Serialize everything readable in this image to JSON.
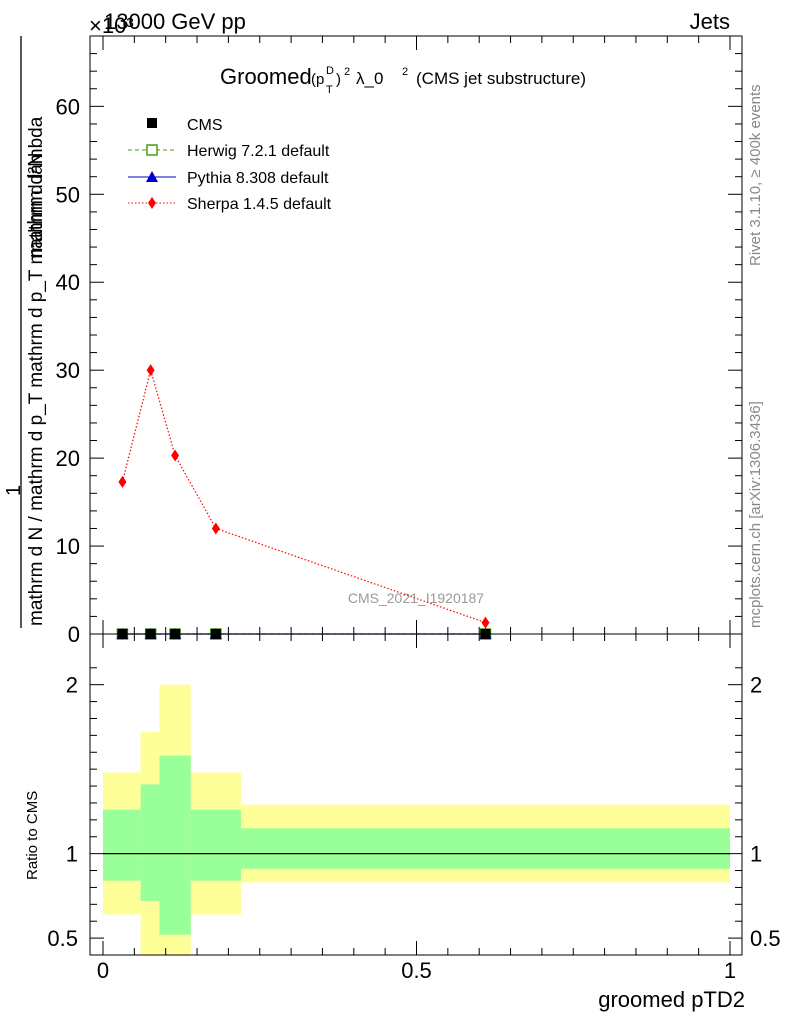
{
  "header": {
    "energy_label": "13000 GeV pp",
    "process_label": "Jets",
    "exponent_label": "×10³"
  },
  "title": {
    "prefix": "Groomed",
    "mid": "λ_0",
    "suffix": "(CMS jet substructure)"
  },
  "side_labels": {
    "rivet": "Rivet 3.1.10, ≥ 400k events",
    "mcplots": "mcplots.cern.ch [arXiv:1306.3436]"
  },
  "watermark": "CMS_2021_I1920187",
  "upper_ylabel": {
    "numerator": "mathrm d²N",
    "one": "1",
    "denominator": "mathrm d N / mathrm d p_T mathrm d p_T mathrm d lambda"
  },
  "lower_ylabel": "Ratio to CMS",
  "xlabel": "groomed pTD2",
  "legend": [
    {
      "name": "CMS",
      "color": "#000000",
      "marker": "square"
    },
    {
      "name": "Herwig 7.2.1 default",
      "color": "#4a9a1a",
      "marker": "open-square"
    },
    {
      "name": "Pythia 8.308 default",
      "color": "#0000cc",
      "marker": "triangle"
    },
    {
      "name": "Sherpa 1.4.5 default",
      "color": "#ff0000",
      "marker": "diamond"
    }
  ],
  "chart_data": [
    {
      "type": "line",
      "panel": "main",
      "xlim": [
        0,
        1
      ],
      "ylim": [
        0,
        68000
      ],
      "y_ticks": [
        0,
        10,
        20,
        30,
        40,
        50,
        60
      ],
      "y_tick_labels": [
        "0",
        "10",
        "20",
        "30",
        "40",
        "50",
        "60"
      ],
      "series": [
        {
          "name": "CMS",
          "x": [
            0.031,
            0.076,
            0.115,
            0.18,
            0.61
          ],
          "values": [
            0,
            0,
            0,
            0,
            0
          ]
        },
        {
          "name": "Herwig 7.2.1 default",
          "x": [
            0.031,
            0.076,
            0.115,
            0.18,
            0.61
          ],
          "values": [
            0,
            0,
            0,
            0,
            0
          ]
        },
        {
          "name": "Pythia 8.308 default",
          "x": [
            0.031,
            0.076,
            0.115,
            0.18,
            0.61
          ],
          "values": [
            0,
            0,
            0,
            0,
            0
          ]
        },
        {
          "name": "Sherpa 1.4.5 default",
          "x": [
            0.031,
            0.076,
            0.115,
            0.18,
            0.61
          ],
          "values": [
            17300,
            30000,
            20300,
            12000,
            1300
          ]
        }
      ]
    },
    {
      "type": "area",
      "panel": "ratio",
      "xlim": [
        0,
        1
      ],
      "ylim": [
        0.4,
        2.3
      ],
      "y_ticks": [
        0.5,
        1,
        2
      ],
      "y_tick_labels": [
        "0.5",
        "1",
        "2"
      ],
      "x_ticks": [
        0,
        0.5,
        1
      ],
      "x_tick_labels": [
        "0",
        "0.5",
        "1"
      ],
      "reference": 1,
      "bins": [
        {
          "lo": 0.0,
          "hi": 0.06,
          "inner": [
            0.84,
            1.26
          ],
          "outer": [
            0.64,
            1.48
          ]
        },
        {
          "lo": 0.06,
          "hi": 0.09,
          "inner": [
            0.72,
            1.41
          ],
          "outer": [
            0.3,
            1.72
          ]
        },
        {
          "lo": 0.09,
          "hi": 0.14,
          "inner": [
            0.52,
            1.58
          ],
          "outer": [
            0.3,
            2.0
          ]
        },
        {
          "lo": 0.14,
          "hi": 0.22,
          "inner": [
            0.84,
            1.26
          ],
          "outer": [
            0.64,
            1.48
          ]
        },
        {
          "lo": 0.22,
          "hi": 1.0,
          "inner": [
            0.91,
            1.15
          ],
          "outer": [
            0.83,
            1.29
          ]
        }
      ]
    }
  ],
  "colors": {
    "inner_band": "#99ff99",
    "outer_band": "#ffff99",
    "watermark": "#999999"
  }
}
